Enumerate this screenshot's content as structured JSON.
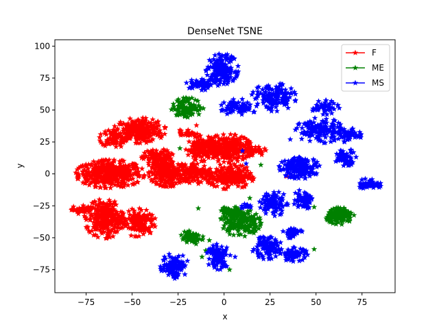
{
  "chart_data": {
    "type": "scatter",
    "title": "DenseNet TSNE",
    "xlabel": "x",
    "ylabel": "y",
    "xlim": [
      -92,
      93
    ],
    "ylim": [
      -93,
      105
    ],
    "xticks": [
      -75,
      -50,
      -25,
      0,
      25,
      50,
      75
    ],
    "yticks": [
      -75,
      -50,
      -25,
      0,
      25,
      50,
      75,
      100
    ],
    "grid": false,
    "legend_position": "top-right",
    "series": [
      {
        "name": "F",
        "color": "#ff0000",
        "marker": "star",
        "clusters": [
          {
            "cx": -62,
            "cy": 0,
            "rx": 17,
            "ry": 10,
            "n": 420
          },
          {
            "cx": -46,
            "cy": 34,
            "rx": 13,
            "ry": 9,
            "n": 260
          },
          {
            "cx": -60,
            "cy": 28,
            "rx": 7,
            "ry": 7,
            "n": 90
          },
          {
            "cx": -36,
            "cy": 12,
            "rx": 8,
            "ry": 7,
            "n": 120
          },
          {
            "cx": -30,
            "cy": 0,
            "rx": 10,
            "ry": 9,
            "n": 220
          },
          {
            "cx": -12,
            "cy": 20,
            "rx": 8,
            "ry": 9,
            "n": 150
          },
          {
            "cx": 2,
            "cy": 20,
            "rx": 12,
            "ry": 10,
            "n": 260
          },
          {
            "cx": 3,
            "cy": -2,
            "rx": 12,
            "ry": 9,
            "n": 220
          },
          {
            "cx": -15,
            "cy": 1,
            "rx": 8,
            "ry": 8,
            "n": 120
          },
          {
            "cx": 15,
            "cy": 18,
            "rx": 7,
            "ry": 4,
            "n": 50
          },
          {
            "cx": -65,
            "cy": -35,
            "rx": 10,
            "ry": 14,
            "n": 260
          },
          {
            "cx": -47,
            "cy": -38,
            "rx": 9,
            "ry": 10,
            "n": 150
          },
          {
            "cx": -78,
            "cy": -28,
            "rx": 5,
            "ry": 3,
            "n": 35
          },
          {
            "cx": -20,
            "cy": 32,
            "rx": 5,
            "ry": 3,
            "n": 30
          }
        ],
        "points": [
          [
            34,
            -2
          ],
          [
            -15,
            38
          ]
        ]
      },
      {
        "name": "ME",
        "color": "#008000",
        "marker": "star",
        "clusters": [
          {
            "cx": -20,
            "cy": 52,
            "rx": 8,
            "ry": 7,
            "n": 110
          },
          {
            "cx": 9,
            "cy": -38,
            "rx": 10,
            "ry": 10,
            "n": 170
          },
          {
            "cx": 4,
            "cy": -30,
            "rx": 6,
            "ry": 4,
            "n": 60
          },
          {
            "cx": 63,
            "cy": -33,
            "rx": 7,
            "ry": 6,
            "n": 140
          },
          {
            "cx": -18,
            "cy": -50,
            "rx": 6,
            "ry": 5,
            "n": 60
          }
        ],
        "points": [
          [
            -24,
            20
          ],
          [
            -14,
            -27
          ],
          [
            14,
            -19
          ],
          [
            20,
            7
          ],
          [
            49,
            -26
          ],
          [
            49,
            -59
          ],
          [
            3,
            -75
          ],
          [
            -12,
            -65
          ],
          [
            -10,
            -60
          ],
          [
            -8,
            -52
          ],
          [
            18,
            -35
          ]
        ]
      },
      {
        "name": "MS",
        "color": "#0000ff",
        "marker": "star",
        "clusters": [
          {
            "cx": -1,
            "cy": 82,
            "rx": 8,
            "ry": 11,
            "n": 160
          },
          {
            "cx": -12,
            "cy": 70,
            "rx": 8,
            "ry": 4,
            "n": 60
          },
          {
            "cx": 27,
            "cy": 60,
            "rx": 11,
            "ry": 10,
            "n": 150
          },
          {
            "cx": 8,
            "cy": 52,
            "rx": 9,
            "ry": 6,
            "n": 80
          },
          {
            "cx": 55,
            "cy": 52,
            "rx": 7,
            "ry": 5,
            "n": 50
          },
          {
            "cx": 52,
            "cy": 34,
            "rx": 12,
            "ry": 9,
            "n": 130
          },
          {
            "cx": 68,
            "cy": 30,
            "rx": 6,
            "ry": 5,
            "n": 50
          },
          {
            "cx": 66,
            "cy": 13,
            "rx": 6,
            "ry": 6,
            "n": 60
          },
          {
            "cx": 41,
            "cy": 5,
            "rx": 10,
            "ry": 8,
            "n": 160
          },
          {
            "cx": 79,
            "cy": -8,
            "rx": 6,
            "ry": 4,
            "n": 50
          },
          {
            "cx": 27,
            "cy": -23,
            "rx": 7,
            "ry": 9,
            "n": 90
          },
          {
            "cx": 43,
            "cy": -20,
            "rx": 5,
            "ry": 7,
            "n": 60
          },
          {
            "cx": 37,
            "cy": -46,
            "rx": 5,
            "ry": 4,
            "n": 40
          },
          {
            "cx": 23,
            "cy": -58,
            "rx": 8,
            "ry": 8,
            "n": 110
          },
          {
            "cx": 38,
            "cy": -63,
            "rx": 7,
            "ry": 5,
            "n": 70
          },
          {
            "cx": -3,
            "cy": -65,
            "rx": 6,
            "ry": 9,
            "n": 90
          },
          {
            "cx": -27,
            "cy": -72,
            "rx": 7,
            "ry": 9,
            "n": 100
          },
          {
            "cx": 12,
            "cy": -25,
            "rx": 3,
            "ry": 2,
            "n": 15
          }
        ],
        "points": [
          [
            10,
            18
          ],
          [
            30,
            6
          ],
          [
            36,
            27
          ],
          [
            -4,
            -55
          ],
          [
            6,
            -65
          ],
          [
            12,
            8
          ]
        ]
      }
    ]
  }
}
